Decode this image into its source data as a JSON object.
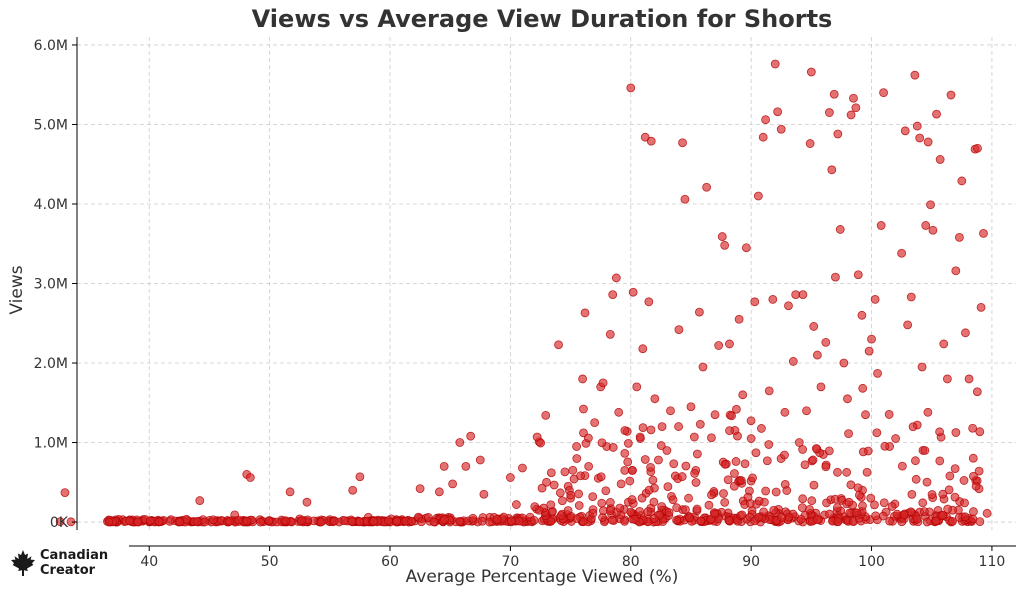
{
  "chart_data": {
    "type": "scatter",
    "title": "Views vs Average View Duration for Shorts",
    "xlabel": "Average Percentage Viewed (%)",
    "ylabel": "Views",
    "xlim": [
      34,
      112
    ],
    "ylim": [
      -100000,
      6100000
    ],
    "xticks": [
      40,
      50,
      60,
      70,
      80,
      90,
      100,
      110
    ],
    "yticks": [
      0,
      1000000,
      2000000,
      3000000,
      4000000,
      5000000,
      6000000
    ],
    "ytick_labels": [
      "0K",
      "1.0M",
      "2.0M",
      "3.0M",
      "4.0M",
      "5.0M",
      "6.0M"
    ],
    "grid": true,
    "color": "#d62728",
    "points": [
      [
        33.0,
        370000
      ],
      [
        32.6,
        5000
      ],
      [
        33.5,
        3000
      ],
      [
        36.7,
        5000
      ],
      [
        37.2,
        2000
      ],
      [
        37.8,
        30000
      ],
      [
        38.5,
        8000
      ],
      [
        39.4,
        12000
      ],
      [
        40.2,
        20000
      ],
      [
        41.0,
        6000
      ],
      [
        41.8,
        30000
      ],
      [
        42.5,
        15000
      ],
      [
        43.3,
        9000
      ],
      [
        44.2,
        270000
      ],
      [
        45.0,
        20000
      ],
      [
        46.0,
        12000
      ],
      [
        47.1,
        90000
      ],
      [
        47.8,
        20000
      ],
      [
        48.1,
        600000
      ],
      [
        48.4,
        560000
      ],
      [
        49.2,
        30000
      ],
      [
        50.0,
        18000
      ],
      [
        51.0,
        25000
      ],
      [
        51.7,
        380000
      ],
      [
        52.5,
        40000
      ],
      [
        53.1,
        250000
      ],
      [
        54.0,
        15000
      ],
      [
        55.0,
        30000
      ],
      [
        56.1,
        20000
      ],
      [
        56.9,
        400000
      ],
      [
        57.5,
        570000
      ],
      [
        58.2,
        60000
      ],
      [
        59.0,
        25000
      ],
      [
        60.1,
        40000
      ],
      [
        61.0,
        30000
      ],
      [
        62.5,
        420000
      ],
      [
        63.0,
        50000
      ],
      [
        64.1,
        380000
      ],
      [
        64.5,
        700000
      ],
      [
        65.2,
        480000
      ],
      [
        65.8,
        1000000
      ],
      [
        66.3,
        700000
      ],
      [
        66.7,
        1080000
      ],
      [
        67.5,
        780000
      ],
      [
        67.8,
        350000
      ],
      [
        68.3,
        60000
      ],
      [
        69.0,
        40000
      ],
      [
        70.0,
        560000
      ],
      [
        70.5,
        220000
      ],
      [
        71.0,
        680000
      ],
      [
        72.4,
        1010000
      ],
      [
        73.0,
        500000
      ],
      [
        73.4,
        620000
      ],
      [
        74.0,
        2230000
      ],
      [
        74.3,
        100000
      ],
      [
        74.8,
        450000
      ],
      [
        75.0,
        300000
      ],
      [
        75.5,
        950000
      ],
      [
        76.0,
        1800000
      ],
      [
        76.2,
        2630000
      ],
      [
        76.5,
        700000
      ],
      [
        77.0,
        1250000
      ],
      [
        77.3,
        550000
      ],
      [
        77.5,
        1700000
      ],
      [
        77.7,
        1750000
      ],
      [
        78.0,
        950000
      ],
      [
        78.3,
        2360000
      ],
      [
        78.5,
        2860000
      ],
      [
        78.8,
        3070000
      ],
      [
        79.0,
        1380000
      ],
      [
        79.2,
        480000
      ],
      [
        79.5,
        650000
      ],
      [
        79.8,
        250000
      ],
      [
        80.0,
        5460000
      ],
      [
        80.2,
        2890000
      ],
      [
        80.5,
        1700000
      ],
      [
        80.8,
        1050000
      ],
      [
        81.0,
        2180000
      ],
      [
        81.2,
        4840000
      ],
      [
        81.5,
        2770000
      ],
      [
        81.7,
        4790000
      ],
      [
        82.0,
        1550000
      ],
      [
        82.3,
        780000
      ],
      [
        82.6,
        1200000
      ],
      [
        83.0,
        900000
      ],
      [
        83.3,
        1400000
      ],
      [
        83.7,
        580000
      ],
      [
        84.0,
        2420000
      ],
      [
        84.3,
        4770000
      ],
      [
        84.5,
        4060000
      ],
      [
        84.8,
        300000
      ],
      [
        85.0,
        1450000
      ],
      [
        85.4,
        650000
      ],
      [
        85.7,
        2640000
      ],
      [
        86.0,
        1950000
      ],
      [
        86.3,
        4210000
      ],
      [
        86.7,
        1060000
      ],
      [
        87.0,
        1350000
      ],
      [
        87.3,
        2220000
      ],
      [
        87.6,
        3590000
      ],
      [
        87.8,
        3480000
      ],
      [
        88.2,
        2240000
      ],
      [
        88.6,
        450000
      ],
      [
        89.0,
        2550000
      ],
      [
        89.3,
        1600000
      ],
      [
        89.6,
        3450000
      ],
      [
        90.0,
        1050000
      ],
      [
        90.3,
        2770000
      ],
      [
        90.6,
        4100000
      ],
      [
        91.0,
        4840000
      ],
      [
        91.2,
        5060000
      ],
      [
        91.5,
        1650000
      ],
      [
        91.8,
        2800000
      ],
      [
        92.0,
        5760000
      ],
      [
        92.2,
        5160000
      ],
      [
        92.5,
        4940000
      ],
      [
        92.8,
        1380000
      ],
      [
        93.1,
        2720000
      ],
      [
        93.5,
        2020000
      ],
      [
        93.7,
        2860000
      ],
      [
        94.0,
        1000000
      ],
      [
        94.3,
        2860000
      ],
      [
        94.6,
        1400000
      ],
      [
        94.9,
        4760000
      ],
      [
        95.0,
        5660000
      ],
      [
        95.2,
        2460000
      ],
      [
        95.5,
        2100000
      ],
      [
        95.8,
        1700000
      ],
      [
        96.0,
        850000
      ],
      [
        96.2,
        2260000
      ],
      [
        96.5,
        5150000
      ],
      [
        96.7,
        4430000
      ],
      [
        96.9,
        5380000
      ],
      [
        97.0,
        3080000
      ],
      [
        97.2,
        4880000
      ],
      [
        97.4,
        3680000
      ],
      [
        97.7,
        2000000
      ],
      [
        98.0,
        1550000
      ],
      [
        98.3,
        5120000
      ],
      [
        98.5,
        5330000
      ],
      [
        98.7,
        5210000
      ],
      [
        98.9,
        3110000
      ],
      [
        99.2,
        2600000
      ],
      [
        99.5,
        1350000
      ],
      [
        99.8,
        2150000
      ],
      [
        100.0,
        2300000
      ],
      [
        100.3,
        2800000
      ],
      [
        100.5,
        1870000
      ],
      [
        100.8,
        3730000
      ],
      [
        101.0,
        5400000
      ],
      [
        101.5,
        950000
      ],
      [
        102.0,
        1050000
      ],
      [
        102.5,
        3380000
      ],
      [
        102.8,
        4920000
      ],
      [
        103.0,
        2480000
      ],
      [
        103.3,
        2830000
      ],
      [
        103.6,
        5620000
      ],
      [
        103.8,
        4980000
      ],
      [
        104.0,
        4830000
      ],
      [
        104.2,
        1950000
      ],
      [
        104.5,
        3730000
      ],
      [
        104.7,
        4780000
      ],
      [
        104.9,
        3990000
      ],
      [
        105.1,
        3670000
      ],
      [
        105.4,
        5130000
      ],
      [
        105.7,
        4560000
      ],
      [
        106.0,
        2240000
      ],
      [
        106.3,
        1800000
      ],
      [
        106.6,
        5370000
      ],
      [
        107.0,
        3160000
      ],
      [
        107.3,
        3580000
      ],
      [
        107.5,
        4290000
      ],
      [
        107.8,
        2380000
      ],
      [
        108.1,
        1800000
      ],
      [
        108.4,
        1180000
      ],
      [
        108.6,
        4690000
      ],
      [
        108.8,
        4700000
      ],
      [
        109.1,
        2700000
      ],
      [
        109.3,
        3630000
      ],
      [
        109.6,
        110000
      ],
      [
        109.0,
        5000
      ]
    ]
  },
  "branding": {
    "logo_line1": "Canadian",
    "logo_line2": "Creator",
    "logo_icon": "maple-leaf-icon"
  }
}
